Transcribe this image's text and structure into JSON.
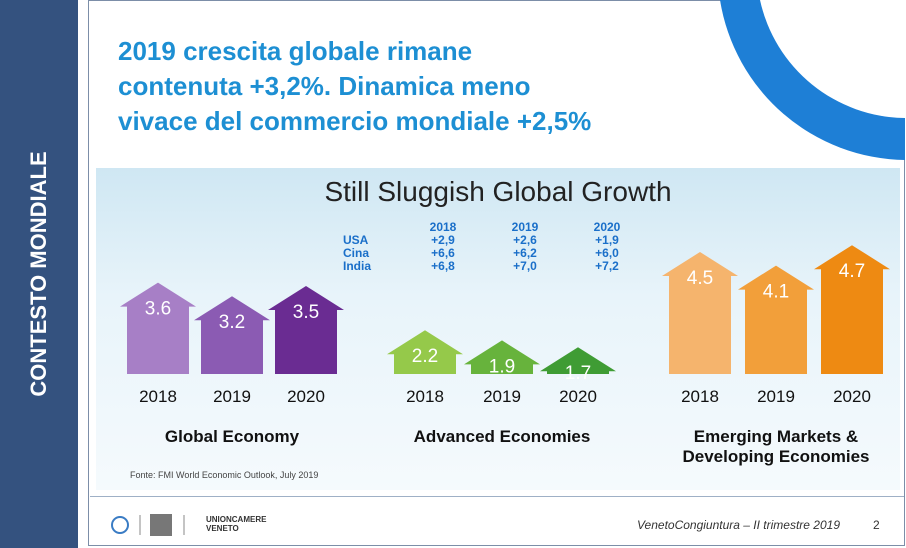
{
  "sidebar": "CONTESTO MONDIALE",
  "title": [
    "2019 crescita globale rimane",
    "contenuta +3,2%. Dinamica meno",
    "vivace del commercio mondiale +2,5%"
  ],
  "infographic": {
    "title": "Still Sluggish Global Growth",
    "table": {
      "header": [
        "2018",
        "2019",
        "2020"
      ],
      "rows": [
        {
          "label": "USA",
          "values": [
            "+2,9",
            "+2,6",
            "+1,9"
          ]
        },
        {
          "label": "Cina",
          "values": [
            "+6,6",
            "+6,2",
            "+6,0"
          ]
        },
        {
          "label": "India",
          "values": [
            "+6,8",
            "+7,0",
            "+7,2"
          ]
        }
      ]
    },
    "groups": [
      {
        "name": "Global Economy",
        "years": [
          "2018",
          "2019",
          "2020"
        ],
        "values": [
          3.6,
          3.2,
          3.5
        ],
        "colors": [
          "#a77fc6",
          "#8b5bb3",
          "#6a2c92"
        ]
      },
      {
        "name": "Advanced Economies",
        "years": [
          "2018",
          "2019",
          "2020"
        ],
        "values": [
          2.2,
          1.9,
          1.7
        ],
        "colors": [
          "#95c94a",
          "#67b33c",
          "#3f9c34"
        ]
      },
      {
        "name": "Emerging Markets & Developing Economies",
        "years": [
          "2018",
          "2019",
          "2020"
        ],
        "values": [
          4.5,
          4.1,
          4.7
        ],
        "colors": [
          "#f5b46d",
          "#f29f3a",
          "#ee8a12"
        ]
      }
    ],
    "source": "Fonte: FMI World Economic Outlook, July 2019"
  },
  "footer": {
    "logo_line1": "UNIONCAMERE",
    "logo_line2": "VENETO",
    "caption": "VenetoCongiuntura – II trimestre 2019",
    "page": "2"
  }
}
